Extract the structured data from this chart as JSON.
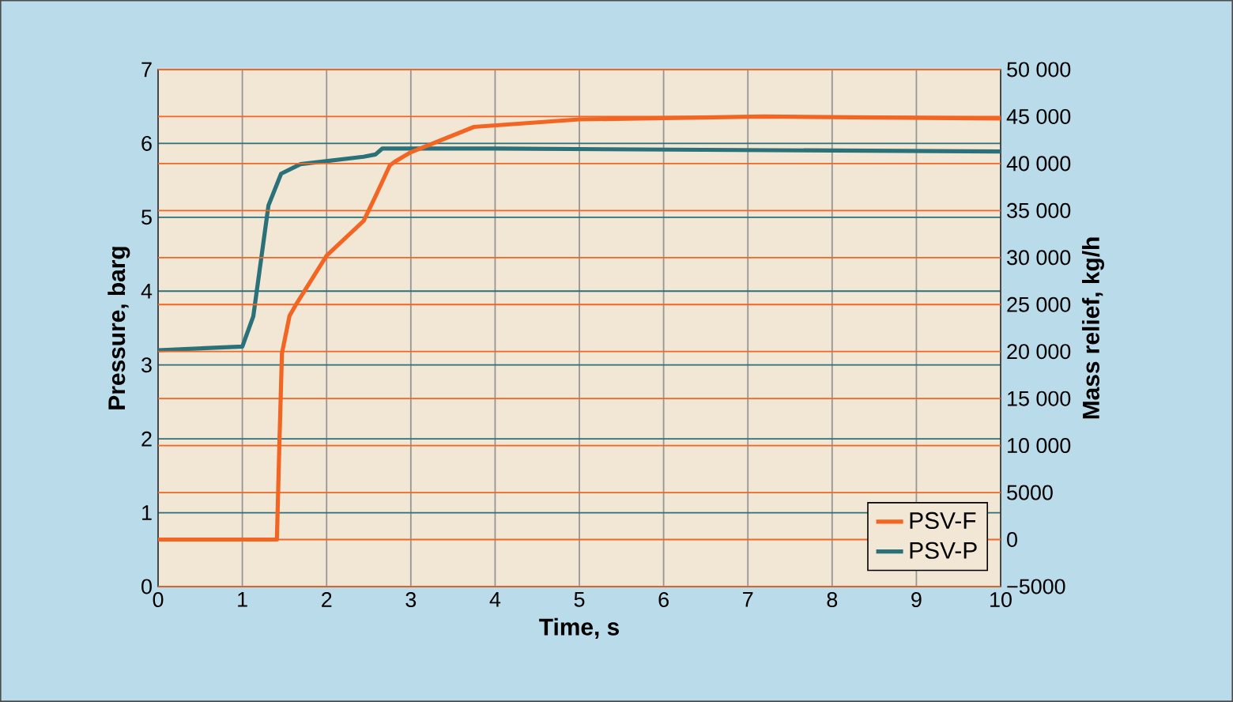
{
  "chart_data": {
    "type": "line",
    "xlabel": "Time, s",
    "ylabel": "Pressure, barg",
    "y2label": "Mass relief, kg/h",
    "xlim": [
      0,
      10
    ],
    "xticks": [
      0,
      1,
      2,
      3,
      4,
      5,
      6,
      7,
      8,
      9,
      10
    ],
    "ylim": [
      0,
      7
    ],
    "yticks": [
      0,
      1,
      2,
      3,
      4,
      5,
      6,
      7
    ],
    "y2lim": [
      -5000,
      50000
    ],
    "y2ticks": [
      {
        "value": -5000,
        "label": "−5000"
      },
      0,
      5000,
      {
        "value": 10000,
        "label": "10 000"
      },
      {
        "value": 15000,
        "label": "15 000"
      },
      {
        "value": 20000,
        "label": "20 000"
      },
      {
        "value": 25000,
        "label": "25 000"
      },
      {
        "value": 30000,
        "label": "30 000"
      },
      {
        "value": 35000,
        "label": "35 000"
      },
      {
        "value": 40000,
        "label": "40 000"
      },
      {
        "value": 45000,
        "label": "45 000"
      },
      {
        "value": 50000,
        "label": "50 000"
      }
    ],
    "grid": true,
    "legend": "bottom right",
    "series": [
      {
        "name": "PSV-F",
        "color": "#f26522",
        "axis": "y2",
        "x": [
          0,
          1.41,
          1.44,
          1.47,
          1.56,
          1.63,
          2.0,
          2.44,
          2.59,
          2.75,
          2.81,
          3.0,
          3.75,
          5,
          7.19,
          10
        ],
        "values": [
          0,
          0,
          10300,
          19800,
          23800,
          24900,
          30200,
          33900,
          36700,
          39800,
          40200,
          41200,
          43900,
          44700,
          45000,
          44800
        ]
      },
      {
        "name": "PSV-P",
        "color": "#2a717a",
        "x": [
          0,
          1.0,
          1.13,
          1.31,
          1.46,
          1.69,
          2.44,
          2.58,
          2.66,
          4,
          10
        ],
        "values": [
          3.2,
          3.25,
          3.66,
          5.16,
          5.59,
          5.72,
          5.82,
          5.85,
          5.93,
          5.93,
          5.89
        ]
      }
    ]
  }
}
